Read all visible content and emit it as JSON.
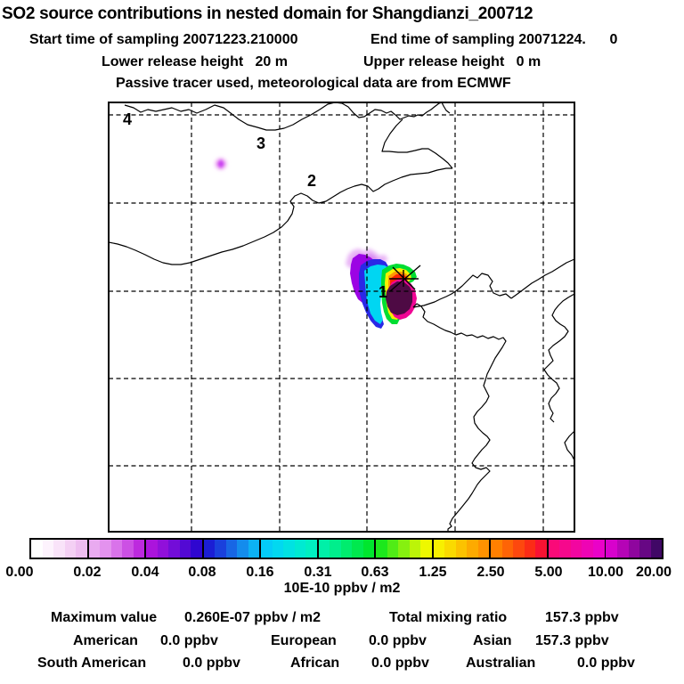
{
  "header": {
    "title": "SO2 source contributions in nested domain for Shangdianzi_200712",
    "line2_left": "Start time of sampling 20071223.210000",
    "line2_right": "End time of sampling 20071224.      0",
    "line3_left": "Lower release height   20 m",
    "line3_right": "Upper release height   0 m",
    "line4": "Passive tracer used, meteorological data are from ECMWF"
  },
  "map": {
    "region_labels": [
      {
        "label": "4"
      },
      {
        "label": "3"
      },
      {
        "label": "2"
      },
      {
        "label": "1"
      }
    ],
    "marker": "receptor-asterisk"
  },
  "colorbar": {
    "tick_labels": [
      "0.00",
      "0.02",
      "0.04",
      "0.08",
      "0.16",
      "0.31",
      "0.63",
      "1.25",
      "2.50",
      "5.00",
      "10.00",
      "20.00"
    ],
    "unit": "10E-10 ppbv / m2",
    "segments": [
      {
        "colors": [
          "#ffffff",
          "#fdf3fd",
          "#f9e3f9",
          "#f4d0f4",
          "#eebdf0"
        ]
      },
      {
        "colors": [
          "#e9aaf0",
          "#e392ee",
          "#d973ea",
          "#cc50e4",
          "#bd2ade"
        ]
      },
      {
        "colors": [
          "#ab14dc",
          "#9110da",
          "#730dd8",
          "#5309d4",
          "#2f06d0"
        ]
      },
      {
        "colors": [
          "#1b1ed4",
          "#1a40dc",
          "#1866e4",
          "#148cec",
          "#0cb2f4"
        ]
      },
      {
        "colors": [
          "#04ccf8",
          "#02d8f0",
          "#01e2e2",
          "#00ead2",
          "#00f0c2"
        ]
      },
      {
        "colors": [
          "#00f0a8",
          "#00ee8c",
          "#00ec6e",
          "#00e94e",
          "#00e62e"
        ]
      },
      {
        "colors": [
          "#1ce81c",
          "#50ec16",
          "#86f010",
          "#bcf408",
          "#eef800"
        ]
      },
      {
        "colors": [
          "#f8f000",
          "#fada00",
          "#fcc200",
          "#fdaa00",
          "#ff9200"
        ]
      },
      {
        "colors": [
          "#ff8000",
          "#fe6406",
          "#fd480e",
          "#fb2c16",
          "#f81232"
        ]
      },
      {
        "colors": [
          "#fa0a78",
          "#f6088c",
          "#f206a0",
          "#ee04b4",
          "#ea02c8"
        ]
      },
      {
        "colors": [
          "#d702cc",
          "#b504b6",
          "#8f069e",
          "#670784",
          "#400866"
        ]
      }
    ]
  },
  "stats": {
    "max_label": "Maximum value",
    "max_value": "0.260E-07 ppbv / m2",
    "total_label": "Total mixing ratio",
    "total_value": "157.3 ppbv",
    "regions": [
      {
        "name": "American",
        "value": "0.0 ppbv"
      },
      {
        "name": "European",
        "value": "0.0 ppbv"
      },
      {
        "name": "Asian",
        "value": "157.3 ppbv"
      },
      {
        "name": "South American",
        "value": "0.0 ppbv"
      },
      {
        "name": "African",
        "value": "0.0 ppbv"
      },
      {
        "name": "Australian",
        "value": "0.0 ppbv"
      }
    ]
  },
  "chart_data": {
    "type": "heatmap",
    "title": "SO2 source contributions in nested domain for Shangdianzi_200712",
    "start_time_of_sampling": "20071223.210000",
    "end_time_of_sampling": "20071224. 0",
    "lower_release_height_m": 20,
    "upper_release_height_m": 0,
    "tracer_note": "Passive tracer used, meteorological data are from ECMWF",
    "colorbar_levels": [
      0.0,
      0.02,
      0.04,
      0.08,
      0.16,
      0.31,
      0.63,
      1.25,
      2.5,
      5.0,
      10.0,
      20.0
    ],
    "colorbar_unit": "10E-10 ppbv / m2",
    "nested_domain_labels": [
      "1",
      "2",
      "3",
      "4"
    ],
    "maximum_value": "0.260E-07 ppbv / m2",
    "total_mixing_ratio_ppbv": 157.3,
    "contributions_ppbv": {
      "American": 0.0,
      "European": 0.0,
      "Asian": 157.3,
      "South American": 0.0,
      "African": 0.0,
      "Australian": 0.0
    },
    "legend_position": "bottom",
    "grid": "dashed"
  }
}
